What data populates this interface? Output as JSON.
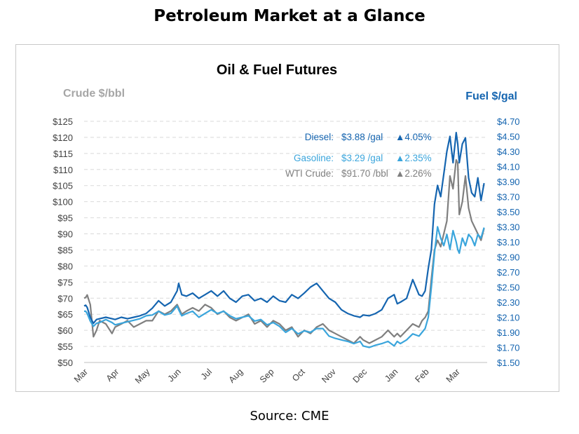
{
  "page_title": "Petroleum Market at a Glance",
  "source": "Source: CME",
  "colors": {
    "diesel": "#1565b0",
    "gasoline": "#3aa5dc",
    "crude": "#7f7f7f",
    "grid": "#d9d9d9"
  },
  "chart_data": {
    "type": "line",
    "title": "Oil & Fuel Futures",
    "left_axis": {
      "label": "Crude $/bbl",
      "ticks": [
        "$125",
        "$120",
        "$115",
        "$110",
        "$105",
        "$100",
        "$95",
        "$90",
        "$85",
        "$80",
        "$75",
        "$70",
        "$65",
        "$60",
        "$55",
        "$50"
      ],
      "range": [
        50,
        125
      ]
    },
    "right_axis": {
      "label": "Fuel $/gal",
      "ticks": [
        "$4.70",
        "$4.50",
        "$4.30",
        "$4.10",
        "$3.90",
        "$3.70",
        "$3.50",
        "$3.30",
        "$3.10",
        "$2.90",
        "$2.70",
        "$2.50",
        "$2.30",
        "$2.10",
        "$1.90",
        "$1.70",
        "$1.50"
      ],
      "range": [
        1.5,
        4.7
      ]
    },
    "x_ticks": [
      "Mar",
      "Apr",
      "May",
      "Jun",
      "Jul",
      "Aug",
      "Sep",
      "Oct",
      "Nov",
      "Dec",
      "Jan",
      "Feb",
      "Mar"
    ],
    "grid": true,
    "legend": [
      {
        "series": "Diesel",
        "label": "Diesel:",
        "value": "$3.88 /gal",
        "change": "▲4.05%"
      },
      {
        "series": "Gasoline",
        "label": "Gasoline:",
        "value": "$3.29 /gal",
        "change": "▲2.35%"
      },
      {
        "series": "WTI Crude",
        "label": "WTI Crude:",
        "value": "$91.70 /bbl",
        "change": "▲2.26%"
      }
    ],
    "series": [
      {
        "name": "Diesel",
        "axis": "right",
        "x": [
          0,
          0.05,
          0.1,
          0.2,
          0.3,
          0.4,
          0.5,
          0.7,
          0.9,
          1,
          1.2,
          1.4,
          1.6,
          1.8,
          2,
          2.2,
          2.4,
          2.6,
          2.8,
          3,
          3.05,
          3.15,
          3.3,
          3.5,
          3.7,
          3.9,
          4.1,
          4.3,
          4.5,
          4.7,
          4.9,
          5.1,
          5.3,
          5.5,
          5.7,
          5.9,
          6.1,
          6.3,
          6.5,
          6.7,
          6.9,
          7.1,
          7.3,
          7.5,
          7.7,
          7.9,
          8.1,
          8.3,
          8.5,
          8.7,
          8.9,
          9,
          9.2,
          9.4,
          9.6,
          9.8,
          10,
          10.1,
          10.2,
          10.4,
          10.6,
          10.8,
          10.9,
          11,
          11.1,
          11.2,
          11.3,
          11.4,
          11.5,
          11.6,
          11.7,
          11.8,
          11.9,
          12,
          12.05,
          12.1,
          12.2,
          12.3,
          12.4,
          12.5,
          12.6,
          12.7,
          12.8,
          12.9
        ],
        "y": [
          2.25,
          2.26,
          2.23,
          2.1,
          2.02,
          2.07,
          2.08,
          2.1,
          2.08,
          2.07,
          2.1,
          2.08,
          2.1,
          2.12,
          2.15,
          2.22,
          2.32,
          2.25,
          2.3,
          2.45,
          2.55,
          2.4,
          2.38,
          2.42,
          2.35,
          2.4,
          2.45,
          2.38,
          2.45,
          2.35,
          2.3,
          2.38,
          2.4,
          2.32,
          2.35,
          2.3,
          2.38,
          2.32,
          2.3,
          2.4,
          2.35,
          2.42,
          2.5,
          2.55,
          2.45,
          2.35,
          2.3,
          2.2,
          2.15,
          2.12,
          2.1,
          2.13,
          2.12,
          2.15,
          2.2,
          2.35,
          2.4,
          2.28,
          2.3,
          2.35,
          2.6,
          2.4,
          2.38,
          2.45,
          2.75,
          3,
          3.6,
          3.85,
          3.7,
          4,
          4.3,
          4.5,
          4.15,
          4.55,
          4.4,
          4.15,
          4.4,
          4.48,
          3.95,
          3.75,
          3.7,
          3.95,
          3.65,
          3.88
        ]
      },
      {
        "name": "Gasoline",
        "axis": "right",
        "x": [
          0,
          0.05,
          0.1,
          0.2,
          0.3,
          0.4,
          0.5,
          0.7,
          0.9,
          1,
          1.2,
          1.4,
          1.6,
          1.8,
          2,
          2.2,
          2.4,
          2.6,
          2.8,
          3,
          3.05,
          3.15,
          3.3,
          3.5,
          3.7,
          3.9,
          4.1,
          4.3,
          4.5,
          4.7,
          4.9,
          5.1,
          5.3,
          5.5,
          5.7,
          5.9,
          6.1,
          6.3,
          6.5,
          6.7,
          6.9,
          7.1,
          7.3,
          7.5,
          7.7,
          7.9,
          8.1,
          8.3,
          8.5,
          8.7,
          8.9,
          9,
          9.2,
          9.4,
          9.6,
          9.8,
          10,
          10.1,
          10.2,
          10.4,
          10.6,
          10.8,
          10.9,
          11,
          11.1,
          11.2,
          11.3,
          11.4,
          11.5,
          11.6,
          11.7,
          11.8,
          11.9,
          12,
          12.05,
          12.1,
          12.2,
          12.3,
          12.4,
          12.5,
          12.6,
          12.7,
          12.8,
          12.9
        ],
        "y": [
          2.18,
          2.18,
          2.15,
          2.05,
          1.98,
          2.02,
          2.03,
          2.07,
          2.03,
          2,
          2.02,
          2.04,
          2.06,
          2.08,
          2.12,
          2.13,
          2.18,
          2.13,
          2.15,
          2.25,
          2.2,
          2.12,
          2.15,
          2.18,
          2.1,
          2.15,
          2.2,
          2.15,
          2.18,
          2.12,
          2.08,
          2.1,
          2.12,
          2.05,
          2.07,
          2,
          2.03,
          1.98,
          1.9,
          1.95,
          1.88,
          1.92,
          1.9,
          1.95,
          1.95,
          1.85,
          1.82,
          1.8,
          1.78,
          1.75,
          1.78,
          1.72,
          1.7,
          1.73,
          1.75,
          1.78,
          1.72,
          1.78,
          1.75,
          1.8,
          1.88,
          1.85,
          1.9,
          1.95,
          2.1,
          2.5,
          2.95,
          3.3,
          3.15,
          3.05,
          3.2,
          3,
          3.25,
          3.1,
          3,
          2.95,
          3.15,
          3.05,
          3.2,
          3.15,
          3.05,
          3.2,
          3.15,
          3.29
        ]
      },
      {
        "name": "WTI Crude",
        "axis": "left",
        "x": [
          0,
          0.05,
          0.1,
          0.2,
          0.3,
          0.4,
          0.5,
          0.7,
          0.9,
          1,
          1.2,
          1.4,
          1.6,
          1.8,
          2,
          2.2,
          2.4,
          2.6,
          2.8,
          3,
          3.05,
          3.15,
          3.3,
          3.5,
          3.7,
          3.9,
          4.1,
          4.3,
          4.5,
          4.7,
          4.9,
          5.1,
          5.3,
          5.5,
          5.7,
          5.9,
          6.1,
          6.3,
          6.5,
          6.7,
          6.9,
          7.1,
          7.3,
          7.5,
          7.7,
          7.9,
          8.1,
          8.3,
          8.5,
          8.7,
          8.9,
          9,
          9.2,
          9.4,
          9.6,
          9.8,
          10,
          10.1,
          10.2,
          10.4,
          10.6,
          10.8,
          10.9,
          11,
          11.1,
          11.2,
          11.3,
          11.4,
          11.5,
          11.6,
          11.7,
          11.8,
          11.9,
          12,
          12.05,
          12.1,
          12.2,
          12.3,
          12.4,
          12.5,
          12.6,
          12.7,
          12.8,
          12.9
        ],
        "y": [
          70,
          70.2,
          71,
          68,
          58,
          60,
          63,
          62,
          59,
          61,
          62,
          63,
          61,
          62,
          63,
          63,
          66,
          65,
          66,
          68,
          67,
          65,
          66,
          67,
          66,
          68,
          67,
          65,
          66,
          64,
          63,
          64,
          65,
          62,
          63,
          61,
          63,
          62,
          60,
          61,
          58,
          60,
          59,
          61,
          62,
          60,
          59,
          58,
          57,
          56,
          58,
          57,
          56,
          57,
          58,
          60,
          58,
          59,
          58,
          60,
          62,
          61,
          63,
          64,
          66,
          76,
          85,
          88,
          86,
          90,
          94,
          108,
          104,
          113,
          112,
          96,
          100,
          108,
          98,
          94,
          92,
          90,
          88,
          91.7
        ]
      }
    ]
  }
}
